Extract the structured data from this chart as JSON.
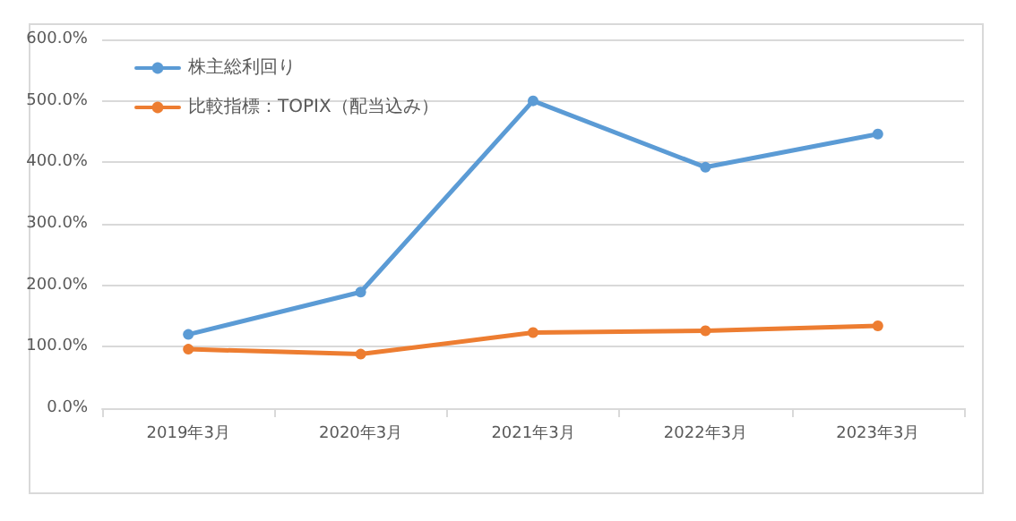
{
  "chart_data": {
    "type": "line",
    "categories": [
      "2019年3月",
      "2020年3月",
      "2021年3月",
      "2022年3月",
      "2023年3月"
    ],
    "series": [
      {
        "name": "株主総利回り",
        "color": "#5b9bd5",
        "values": [
          120,
          189,
          500,
          392,
          446
        ]
      },
      {
        "name": "比較指標：TOPIX（配当込み）",
        "color": "#ed7d31",
        "values": [
          96,
          88,
          123,
          126,
          134
        ]
      }
    ],
    "ylim": [
      0,
      600
    ],
    "yticks": [
      {
        "value": 0,
        "label": "0.0%"
      },
      {
        "value": 100,
        "label": "100.0%"
      },
      {
        "value": 200,
        "label": "200.0%"
      },
      {
        "value": 300,
        "label": "300.0%"
      },
      {
        "value": 400,
        "label": "400.0%"
      },
      {
        "value": 500,
        "label": "500.0%"
      },
      {
        "value": 600,
        "label": "600.0%"
      }
    ],
    "grid": "y",
    "legend": "top left",
    "marker": "circle",
    "line_style": "solid"
  }
}
